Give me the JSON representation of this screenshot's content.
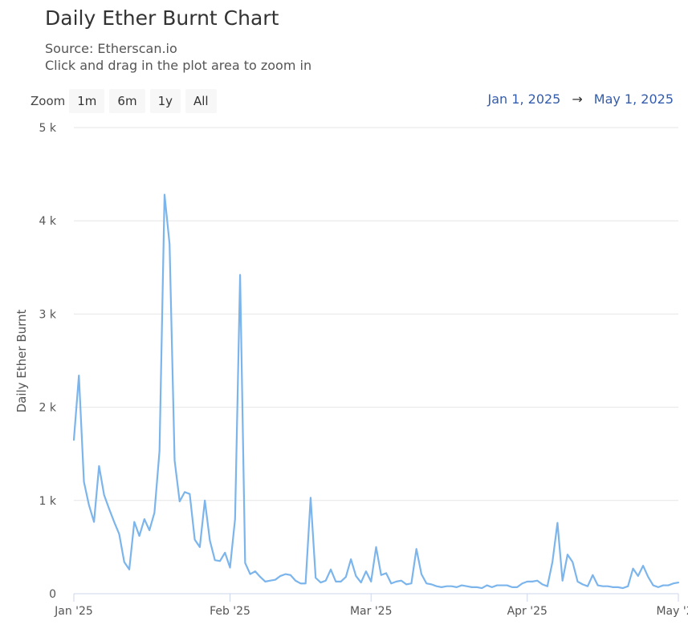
{
  "title": "Daily Ether Burnt Chart",
  "subtitle": "Source: Etherscan.io",
  "hint": "Click and drag in the plot area to zoom in",
  "zoom": {
    "label": "Zoom",
    "buttons": [
      "1m",
      "6m",
      "1y",
      "All"
    ]
  },
  "range": {
    "from": "Jan 1, 2025",
    "arrow": "→",
    "to": "May 1, 2025"
  },
  "colors": {
    "line": "#7cb5ec",
    "grid": "#e6e6e6",
    "range_text": "#335cad"
  },
  "chart_data": {
    "type": "line",
    "title": "",
    "xlabel": "",
    "ylabel": "Daily Ether Burnt",
    "ylim": [
      0,
      5000
    ],
    "y_ticks": [
      "0",
      "1 k",
      "2 k",
      "3 k",
      "4 k",
      "5 k"
    ],
    "x_ticks": [
      "Jan '25",
      "Feb '25",
      "Mar '25",
      "Apr '25",
      "May '25"
    ],
    "x_range": [
      "2025-01-01",
      "2025-05-01"
    ],
    "grid": true,
    "series": [
      {
        "name": "",
        "x": [
          "2025-01-01",
          "2025-01-02",
          "2025-01-03",
          "2025-01-04",
          "2025-01-05",
          "2025-01-06",
          "2025-01-07",
          "2025-01-08",
          "2025-01-09",
          "2025-01-10",
          "2025-01-11",
          "2025-01-12",
          "2025-01-13",
          "2025-01-14",
          "2025-01-15",
          "2025-01-16",
          "2025-01-17",
          "2025-01-18",
          "2025-01-19",
          "2025-01-20",
          "2025-01-21",
          "2025-01-22",
          "2025-01-23",
          "2025-01-24",
          "2025-01-25",
          "2025-01-26",
          "2025-01-27",
          "2025-01-28",
          "2025-01-29",
          "2025-01-30",
          "2025-01-31",
          "2025-02-01",
          "2025-02-02",
          "2025-02-03",
          "2025-02-04",
          "2025-02-05",
          "2025-02-06",
          "2025-02-07",
          "2025-02-08",
          "2025-02-09",
          "2025-02-10",
          "2025-02-11",
          "2025-02-12",
          "2025-02-13",
          "2025-02-14",
          "2025-02-15",
          "2025-02-16",
          "2025-02-17",
          "2025-02-18",
          "2025-02-19",
          "2025-02-20",
          "2025-02-21",
          "2025-02-22",
          "2025-02-23",
          "2025-02-24",
          "2025-02-25",
          "2025-02-26",
          "2025-02-27",
          "2025-02-28",
          "2025-03-01",
          "2025-03-02",
          "2025-03-03",
          "2025-03-04",
          "2025-03-05",
          "2025-03-06",
          "2025-03-07",
          "2025-03-08",
          "2025-03-09",
          "2025-03-10",
          "2025-03-11",
          "2025-03-12",
          "2025-03-13",
          "2025-03-14",
          "2025-03-15",
          "2025-03-16",
          "2025-03-17",
          "2025-03-18",
          "2025-03-19",
          "2025-03-20",
          "2025-03-21",
          "2025-03-22",
          "2025-03-23",
          "2025-03-24",
          "2025-03-25",
          "2025-03-26",
          "2025-03-27",
          "2025-03-28",
          "2025-03-29",
          "2025-03-30",
          "2025-03-31",
          "2025-04-01",
          "2025-04-02",
          "2025-04-03",
          "2025-04-04",
          "2025-04-05",
          "2025-04-06",
          "2025-04-07",
          "2025-04-08",
          "2025-04-09",
          "2025-04-10",
          "2025-04-11",
          "2025-04-12",
          "2025-04-13",
          "2025-04-14",
          "2025-04-15",
          "2025-04-16",
          "2025-04-17",
          "2025-04-18",
          "2025-04-19",
          "2025-04-20",
          "2025-04-21",
          "2025-04-22",
          "2025-04-23",
          "2025-04-24",
          "2025-04-25",
          "2025-04-26",
          "2025-04-27",
          "2025-04-28",
          "2025-04-29",
          "2025-04-30",
          "2025-05-01"
        ],
        "values": [
          1650,
          2340,
          1200,
          950,
          770,
          1370,
          1060,
          910,
          770,
          640,
          340,
          260,
          770,
          620,
          800,
          680,
          870,
          1530,
          4280,
          3750,
          1430,
          990,
          1090,
          1070,
          580,
          500,
          1000,
          570,
          360,
          350,
          440,
          280,
          800,
          3420,
          330,
          210,
          240,
          180,
          130,
          140,
          150,
          190,
          210,
          200,
          140,
          110,
          110,
          1030,
          170,
          120,
          140,
          260,
          130,
          130,
          180,
          370,
          190,
          120,
          240,
          130,
          500,
          200,
          220,
          110,
          130,
          140,
          100,
          110,
          480,
          210,
          110,
          100,
          80,
          70,
          80,
          80,
          70,
          90,
          80,
          70,
          70,
          60,
          90,
          70,
          90,
          90,
          90,
          70,
          70,
          110,
          130,
          130,
          140,
          100,
          80,
          340,
          760,
          140,
          420,
          340,
          130,
          100,
          80,
          200,
          90,
          80,
          80,
          70,
          70,
          60,
          80,
          270,
          190,
          300,
          180,
          90,
          70,
          90,
          90,
          110,
          120
        ]
      }
    ]
  }
}
